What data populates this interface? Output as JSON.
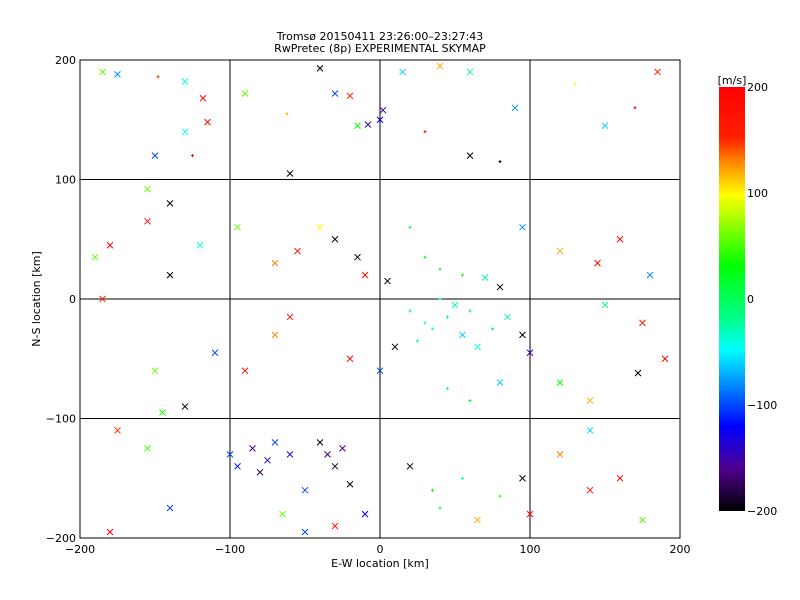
{
  "chart_data": {
    "type": "scatter",
    "title": "Tromsø 20150411 23:26:00–23:27:43",
    "subtitle": "RwPretec (8p) EXPERIMENTAL SKYMAP",
    "xlabel": "E-W location [km]",
    "ylabel": "N-S location [km]",
    "xlim": [
      -200,
      200
    ],
    "ylim": [
      -200,
      200
    ],
    "xticks": [
      -200,
      -100,
      0,
      100,
      200
    ],
    "yticks": [
      -200,
      -100,
      0,
      100,
      200
    ],
    "xtick_labels": [
      "−200",
      "−100",
      "0",
      "100",
      "200"
    ],
    "ytick_labels": [
      "−200",
      "−100",
      "0",
      "100",
      "200"
    ],
    "grid": true,
    "colorbar": {
      "label": "[m/s]",
      "range": [
        -200,
        200
      ],
      "ticks": [
        200,
        100,
        0,
        -100,
        -200
      ],
      "tick_labels": [
        "200",
        "100",
        "0",
        "−100",
        "−200"
      ],
      "placement": "right"
    },
    "points_format": [
      "x_km",
      "y_km",
      "velocity_m_s",
      "marker"
    ],
    "points": [
      [
        -185,
        190,
        50,
        "x"
      ],
      [
        -175,
        188,
        -80,
        "x"
      ],
      [
        -148,
        186,
        150,
        "+"
      ],
      [
        -130,
        182,
        -40,
        "x"
      ],
      [
        -118,
        168,
        200,
        "x"
      ],
      [
        -115,
        148,
        190,
        "x"
      ],
      [
        -130,
        140,
        -50,
        "x"
      ],
      [
        -150,
        120,
        -100,
        "x"
      ],
      [
        -125,
        120,
        200,
        "+"
      ],
      [
        -90,
        172,
        60,
        "x"
      ],
      [
        -62,
        155,
        120,
        "+"
      ],
      [
        -40,
        193,
        -200,
        "x"
      ],
      [
        -30,
        172,
        -100,
        "x"
      ],
      [
        -20,
        170,
        150,
        "x"
      ],
      [
        -15,
        145,
        30,
        "x"
      ],
      [
        -8,
        146,
        -140,
        "x"
      ],
      [
        0,
        150,
        -120,
        "x"
      ],
      [
        2,
        158,
        -150,
        "x"
      ],
      [
        15,
        190,
        -60,
        "x"
      ],
      [
        40,
        195,
        120,
        "x"
      ],
      [
        60,
        190,
        -20,
        "x"
      ],
      [
        90,
        160,
        -80,
        "x"
      ],
      [
        130,
        180,
        100,
        "+"
      ],
      [
        150,
        145,
        -60,
        "x"
      ],
      [
        170,
        160,
        200,
        "+"
      ],
      [
        185,
        190,
        160,
        "x"
      ],
      [
        60,
        120,
        -200,
        "x"
      ],
      [
        80,
        115,
        -200,
        "+"
      ],
      [
        30,
        140,
        200,
        "+"
      ],
      [
        -60,
        105,
        -200,
        "x"
      ],
      [
        -155,
        92,
        60,
        "x"
      ],
      [
        -140,
        80,
        -200,
        "x"
      ],
      [
        -155,
        65,
        200,
        "x"
      ],
      [
        -180,
        45,
        200,
        "x"
      ],
      [
        -140,
        20,
        -200,
        "x"
      ],
      [
        -190,
        35,
        60,
        "x"
      ],
      [
        -185,
        0,
        150,
        "x"
      ],
      [
        -120,
        45,
        -40,
        "x"
      ],
      [
        -95,
        60,
        60,
        "x"
      ],
      [
        -70,
        30,
        130,
        "x"
      ],
      [
        -55,
        40,
        200,
        "x"
      ],
      [
        -40,
        60,
        100,
        "x"
      ],
      [
        -30,
        50,
        -200,
        "x"
      ],
      [
        -15,
        35,
        -200,
        "x"
      ],
      [
        -10,
        20,
        190,
        "x"
      ],
      [
        5,
        15,
        -200,
        "x"
      ],
      [
        20,
        60,
        10,
        "+"
      ],
      [
        30,
        35,
        20,
        "+"
      ],
      [
        40,
        25,
        10,
        "+"
      ],
      [
        55,
        20,
        40,
        "+"
      ],
      [
        70,
        18,
        -30,
        "x"
      ],
      [
        80,
        10,
        -200,
        "x"
      ],
      [
        95,
        60,
        -80,
        "x"
      ],
      [
        120,
        40,
        120,
        "x"
      ],
      [
        145,
        30,
        200,
        "x"
      ],
      [
        160,
        50,
        200,
        "x"
      ],
      [
        180,
        20,
        -80,
        "x"
      ],
      [
        150,
        -5,
        -20,
        "x"
      ],
      [
        175,
        -20,
        160,
        "x"
      ],
      [
        190,
        -50,
        200,
        "x"
      ],
      [
        172,
        -62,
        -200,
        "x"
      ],
      [
        20,
        -10,
        -10,
        "+"
      ],
      [
        30,
        -20,
        -20,
        "+"
      ],
      [
        35,
        -25,
        -40,
        "+"
      ],
      [
        45,
        -15,
        0,
        "+"
      ],
      [
        50,
        -5,
        -30,
        "x"
      ],
      [
        55,
        -30,
        -60,
        "x"
      ],
      [
        60,
        -10,
        10,
        "+"
      ],
      [
        40,
        0,
        -10,
        "+"
      ],
      [
        25,
        -35,
        -20,
        "+"
      ],
      [
        65,
        -40,
        -40,
        "x"
      ],
      [
        75,
        -25,
        20,
        "+"
      ],
      [
        85,
        -15,
        -30,
        "x"
      ],
      [
        95,
        -30,
        -200,
        "x"
      ],
      [
        100,
        -45,
        -150,
        "x"
      ],
      [
        10,
        -40,
        -200,
        "x"
      ],
      [
        0,
        -60,
        -100,
        "x"
      ],
      [
        -20,
        -50,
        190,
        "x"
      ],
      [
        -60,
        -15,
        180,
        "x"
      ],
      [
        -70,
        -30,
        130,
        "x"
      ],
      [
        -90,
        -60,
        200,
        "x"
      ],
      [
        -110,
        -45,
        -100,
        "x"
      ],
      [
        -150,
        -60,
        60,
        "x"
      ],
      [
        -145,
        -95,
        40,
        "x"
      ],
      [
        -130,
        -90,
        -200,
        "x"
      ],
      [
        -175,
        -110,
        150,
        "x"
      ],
      [
        -155,
        -125,
        50,
        "x"
      ],
      [
        45,
        -75,
        -20,
        "+"
      ],
      [
        60,
        -85,
        20,
        "+"
      ],
      [
        80,
        -70,
        -60,
        "x"
      ],
      [
        120,
        -70,
        30,
        "x"
      ],
      [
        140,
        -85,
        120,
        "x"
      ],
      [
        -100,
        -130,
        -100,
        "x"
      ],
      [
        -95,
        -140,
        -120,
        "x"
      ],
      [
        -85,
        -125,
        -150,
        "x"
      ],
      [
        -80,
        -145,
        -180,
        "x"
      ],
      [
        -75,
        -135,
        -130,
        "x"
      ],
      [
        -70,
        -120,
        -100,
        "x"
      ],
      [
        -60,
        -130,
        -140,
        "x"
      ],
      [
        -40,
        -120,
        -200,
        "x"
      ],
      [
        -35,
        -130,
        -170,
        "x"
      ],
      [
        -30,
        -140,
        -190,
        "x"
      ],
      [
        -25,
        -125,
        -160,
        "x"
      ],
      [
        -20,
        -155,
        -200,
        "x"
      ],
      [
        -50,
        -160,
        -100,
        "x"
      ],
      [
        -65,
        -180,
        60,
        "x"
      ],
      [
        -10,
        -180,
        -120,
        "x"
      ],
      [
        -30,
        -190,
        190,
        "x"
      ],
      [
        -50,
        -195,
        -100,
        "x"
      ],
      [
        20,
        -140,
        -200,
        "x"
      ],
      [
        35,
        -160,
        30,
        "+"
      ],
      [
        40,
        -175,
        10,
        "+"
      ],
      [
        55,
        -150,
        -20,
        "+"
      ],
      [
        65,
        -185,
        120,
        "x"
      ],
      [
        80,
        -165,
        40,
        "+"
      ],
      [
        95,
        -150,
        -200,
        "x"
      ],
      [
        100,
        -180,
        190,
        "x"
      ],
      [
        120,
        -130,
        130,
        "x"
      ],
      [
        140,
        -160,
        180,
        "x"
      ],
      [
        160,
        -150,
        180,
        "x"
      ],
      [
        175,
        -185,
        50,
        "x"
      ],
      [
        140,
        -110,
        -60,
        "x"
      ],
      [
        -140,
        -175,
        -100,
        "x"
      ],
      [
        -180,
        -195,
        200,
        "x"
      ]
    ]
  }
}
